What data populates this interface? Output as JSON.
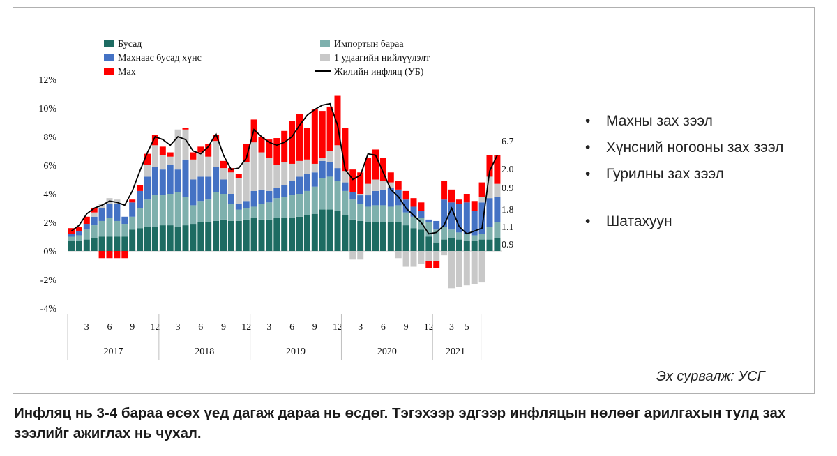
{
  "legend": {
    "busad": "Бусад",
    "import": "Импортын бараа",
    "non_meat_food": "Махнаас бусад хүнс",
    "one_time": "1 удаагийн нийлүүлэлт",
    "meat": "Мах",
    "inflation": "Жилийн инфляц (УБ)"
  },
  "bullets": [
    "Махны зах зээл",
    "Хүнсний ногооны зах зээл",
    "Гурилны зах зээл",
    "Шатахуун"
  ],
  "source": "Эх сурвалж: УСГ",
  "caption": "Инфляц нь 3-4 бараа өсөх үед дагаж дараа нь өсдөг. Тэгэхээр эдгээр инфляцын нөлөөг арилгахын тулд зах зээлийг ажиглах нь чухал.",
  "chart_data": {
    "type": "bar",
    "stacked": true,
    "title": "",
    "ylim": [
      -4,
      12
    ],
    "yticks": [
      "12%",
      "10%",
      "8%",
      "6%",
      "4%",
      "2%",
      "0%",
      "-2%",
      "-4%"
    ],
    "month_labels": [
      "3",
      "6",
      "9",
      "12",
      "3",
      "6",
      "9",
      "12",
      "3",
      "6",
      "9",
      "12",
      "3",
      "6",
      "9",
      "12",
      "3",
      "5"
    ],
    "year_labels": [
      "2017",
      "2018",
      "2019",
      "2020",
      "2021"
    ],
    "end_labels": [
      "6.7",
      "2.0",
      "0.9",
      "1.8",
      "1.1",
      "0.9"
    ],
    "colors": {
      "busad": "#1d6b62",
      "import": "#7eb0ad",
      "non_meat_food": "#4472c4",
      "one_time": "#c8c8c8",
      "meat": "#ff0000",
      "inflation": "#000000"
    },
    "series": [
      {
        "name": "Бусад",
        "values": [
          0.7,
          0.7,
          0.8,
          0.9,
          1.0,
          1.0,
          1.0,
          1.0,
          1.5,
          1.6,
          1.7,
          1.7,
          1.8,
          1.8,
          1.7,
          1.8,
          1.9,
          2.0,
          2.0,
          2.1,
          2.2,
          2.1,
          2.1,
          2.2,
          2.3,
          2.2,
          2.2,
          2.3,
          2.3,
          2.3,
          2.4,
          2.5,
          2.6,
          2.9,
          2.9,
          2.8,
          2.5,
          2.2,
          2.1,
          2.0,
          2.0,
          2.0,
          2.0,
          2.0,
          1.8,
          1.6,
          1.5,
          1.0,
          0.6,
          0.8,
          0.9,
          0.8,
          0.7,
          0.7,
          0.8,
          0.8,
          0.9
        ]
      },
      {
        "name": "Импортын бараа",
        "values": [
          0.3,
          0.4,
          0.7,
          0.9,
          1.1,
          1.3,
          1.1,
          0.9,
          0.9,
          1.4,
          1.9,
          2.2,
          2.1,
          2.2,
          2.4,
          2.0,
          1.3,
          1.5,
          1.6,
          2.0,
          1.8,
          1.2,
          0.8,
          0.8,
          0.8,
          1.1,
          1.2,
          1.4,
          1.5,
          1.6,
          1.6,
          1.7,
          1.9,
          2.2,
          2.3,
          2.1,
          1.7,
          1.4,
          1.2,
          1.1,
          1.2,
          1.2,
          1.1,
          1.2,
          0.9,
          0.8,
          0.8,
          1.0,
          0.9,
          0.9,
          0.6,
          0.5,
          0.5,
          0.4,
          0.4,
          0.9,
          1.1
        ]
      },
      {
        "name": "Махнаас бусад хүнс",
        "values": [
          0.2,
          0.3,
          0.4,
          0.6,
          0.9,
          1.0,
          1.2,
          0.5,
          1.0,
          1.2,
          1.6,
          2.0,
          1.8,
          2.0,
          1.6,
          2.6,
          1.8,
          1.7,
          1.6,
          1.8,
          1.0,
          0.7,
          0.4,
          0.5,
          1.1,
          1.0,
          0.8,
          0.7,
          0.8,
          1.0,
          1.2,
          1.2,
          1.0,
          1.2,
          1.0,
          0.9,
          0.6,
          0.5,
          0.6,
          0.8,
          1.0,
          1.1,
          1.3,
          1.1,
          0.9,
          0.7,
          0.5,
          0.2,
          0.6,
          1.9,
          1.9,
          2.0,
          2.2,
          1.7,
          2.2,
          2.0,
          1.8
        ]
      },
      {
        "name": "1 удаагийн нийлүүлэлт",
        "values": [
          0,
          0,
          0,
          0.3,
          0.3,
          0.4,
          0.3,
          0,
          0,
          0,
          0.8,
          1.5,
          1.0,
          0.6,
          2.8,
          2.1,
          1.4,
          1.7,
          1.4,
          1.8,
          0.8,
          1.5,
          1.8,
          2.7,
          3.4,
          2.6,
          2.3,
          1.6,
          1.6,
          1.2,
          1.1,
          1.0,
          0.6,
          0.2,
          0.8,
          1.6,
          0.8,
          0,
          0.1,
          0.8,
          0.8,
          0.6,
          0.4,
          0,
          0,
          0,
          0,
          0,
          0,
          0,
          0,
          0,
          0,
          0,
          0.4,
          1.5,
          0.9
        ]
      },
      {
        "name": "Мах",
        "values": [
          0.4,
          0.3,
          0.5,
          0.3,
          0,
          0,
          0,
          0,
          0.2,
          0.4,
          0.8,
          0.7,
          0.6,
          0.3,
          0,
          0.1,
          0.5,
          0.4,
          0.9,
          0.4,
          0.5,
          0.3,
          0.3,
          1.3,
          1.6,
          1.1,
          1.3,
          1.9,
          2.2,
          3.0,
          3.3,
          2.2,
          3.8,
          3.3,
          3.1,
          3.5,
          3.0,
          1.6,
          1.5,
          1.8,
          2.1,
          1.6,
          0.7,
          0.6,
          0.6,
          0.6,
          0.6,
          0,
          0,
          1.3,
          0.9,
          0.3,
          0.6,
          0.7,
          1.0,
          1.5,
          2.0
        ]
      },
      {
        "name": "1 удаагийн нийлүүлэлт (сөрөг)",
        "values": [
          0,
          0,
          0,
          0,
          0,
          0,
          0,
          0,
          0,
          0,
          0,
          0,
          0,
          0,
          0,
          0,
          0,
          0,
          0,
          0,
          0,
          0,
          0,
          0,
          0,
          0,
          0,
          0,
          0,
          0,
          0,
          0,
          0,
          0,
          0,
          0,
          0,
          -0.6,
          -0.6,
          0,
          0,
          0,
          0,
          -0.5,
          -1.1,
          -1.1,
          -0.9,
          -0.7,
          -0.7,
          -0.3,
          -2.6,
          -2.5,
          -2.4,
          -2.3,
          -2.2,
          0,
          0
        ]
      },
      {
        "name": "Мах (сөрөг)",
        "values": [
          0,
          0,
          0,
          0,
          -0.5,
          -0.5,
          -0.5,
          -0.5,
          0,
          0,
          0,
          0,
          0,
          0,
          0,
          0,
          0,
          0,
          0,
          0,
          0,
          0,
          0,
          0,
          0,
          0,
          0,
          0,
          0,
          0,
          0,
          0,
          0,
          0,
          0,
          0,
          0,
          0,
          0,
          0,
          0,
          0,
          0,
          0,
          0,
          0,
          0,
          -0.5,
          -0.5,
          0,
          0,
          0,
          0,
          0,
          0,
          0,
          0
        ]
      },
      {
        "name": "Жилийн инфляц (УБ)",
        "type": "line",
        "values": [
          1.4,
          1.8,
          2.6,
          3.0,
          3.2,
          3.5,
          3.4,
          3.2,
          4.2,
          5.6,
          6.9,
          8.0,
          7.8,
          7.4,
          8.0,
          7.8,
          7.0,
          6.8,
          7.3,
          8.2,
          6.7,
          5.7,
          5.8,
          6.5,
          8.5,
          8.0,
          7.6,
          7.4,
          7.6,
          8.0,
          8.8,
          9.5,
          9.9,
          10.2,
          10.3,
          8.8,
          5.7,
          5.0,
          5.3,
          6.8,
          6.7,
          5.5,
          4.3,
          3.8,
          3.0,
          2.5,
          2.0,
          1.2,
          1.3,
          1.8,
          3.0,
          1.7,
          1.2,
          1.4,
          1.6,
          5.6,
          6.7
        ]
      }
    ]
  }
}
